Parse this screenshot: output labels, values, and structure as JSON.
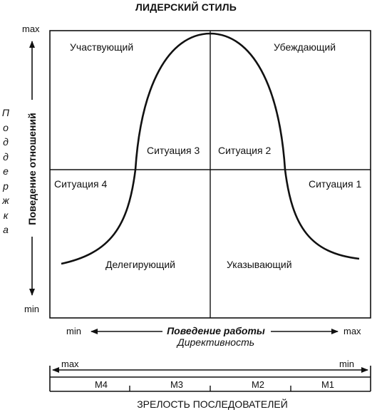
{
  "title": "ЛИДЕРСКИЙ СТИЛЬ",
  "y_axis": {
    "max": "max",
    "min": "min",
    "label": "Поведение отношений",
    "side_label": "Поддержка"
  },
  "quadrants": {
    "top_left": "Участвующий",
    "top_right": "Убеждающий",
    "bottom_left": "Делегирующий",
    "bottom_right": "Указывающий"
  },
  "situations": {
    "s1": "Ситуация 1",
    "s2": "Ситуация 2",
    "s3": "Ситуация 3",
    "s4": "Ситуация 4"
  },
  "x_axis": {
    "min": "min",
    "max": "max",
    "label": "Поведение работы",
    "sublabel": "Директивность"
  },
  "maturity": {
    "left": "max",
    "right": "min",
    "segments": [
      "M4",
      "M3",
      "M2",
      "M1"
    ],
    "label": "ЗРЕЛОСТЬ ПОСЛЕДОВАТЕЛЕЙ"
  }
}
